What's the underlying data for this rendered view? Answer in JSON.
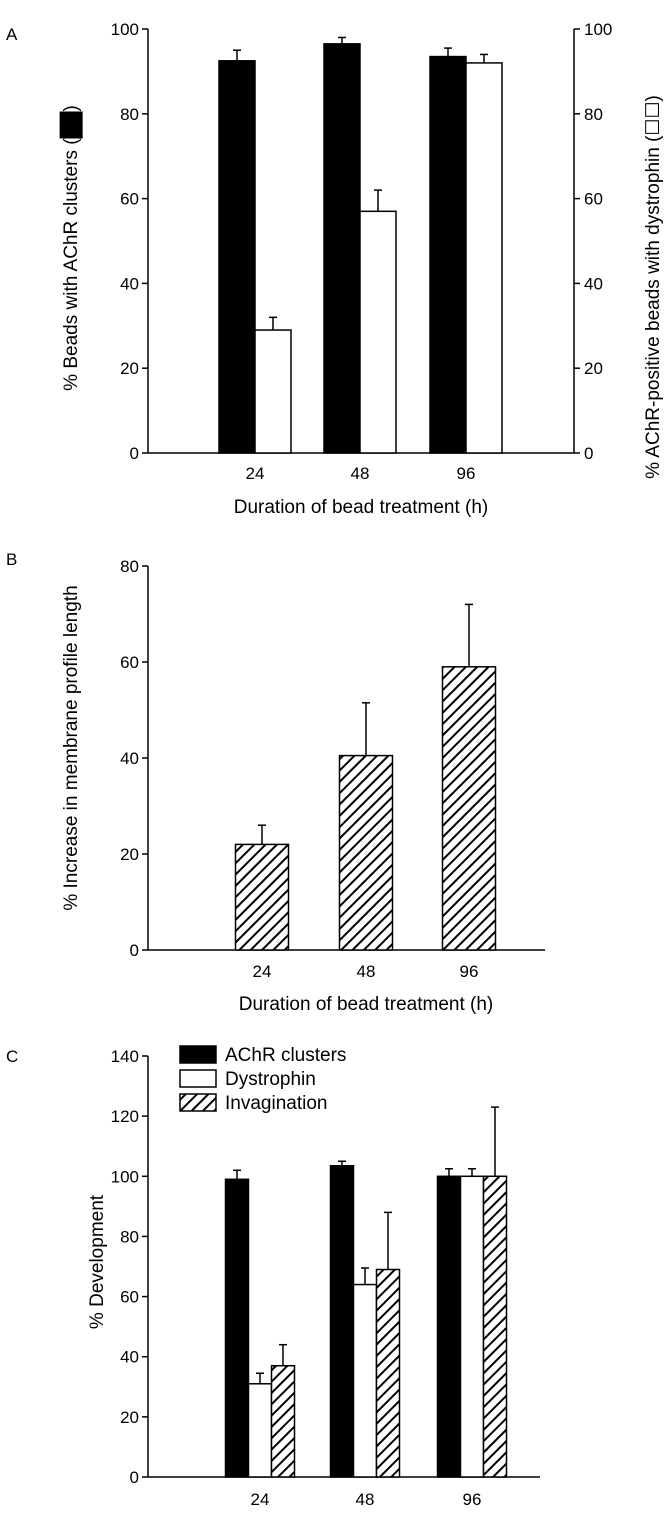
{
  "colors": {
    "filled": "#000000",
    "open": "#ffffff",
    "stroke": "#000000"
  },
  "chart_data": [
    {
      "panel": "A",
      "type": "bar",
      "xlabel": "Duration of bead treatment (h)",
      "ylabel": "% Beads with AChR clusters (",
      "ylabel_right": "% AChR-positive beads with dystrophin (",
      "ylabel_close": ")",
      "ylim": [
        0,
        100
      ],
      "ylim_right": [
        0,
        100
      ],
      "yticks": [
        0,
        20,
        40,
        60,
        80,
        100
      ],
      "yticks_right": [
        0,
        20,
        40,
        60,
        80,
        100
      ],
      "categories": [
        "24",
        "48",
        "96"
      ],
      "series": [
        {
          "name": "AChR clusters",
          "fill": "solid",
          "axis": "left",
          "values": [
            92.5,
            96.5,
            93.5
          ],
          "errors": [
            2.5,
            1.5,
            2.0
          ]
        },
        {
          "name": "Dystrophin",
          "fill": "open",
          "axis": "right",
          "values": [
            29,
            57,
            92
          ],
          "errors": [
            3,
            5,
            2
          ]
        }
      ]
    },
    {
      "panel": "B",
      "type": "bar",
      "xlabel": "Duration of bead treatment (h)",
      "ylabel": "% Increase in membrane profile length",
      "ylim": [
        0,
        80
      ],
      "yticks": [
        0,
        20,
        40,
        60,
        80
      ],
      "categories": [
        "24",
        "48",
        "96"
      ],
      "series": [
        {
          "name": "Invagination",
          "fill": "hatched",
          "values": [
            22,
            40.5,
            59
          ],
          "errors": [
            4,
            11,
            13
          ]
        }
      ]
    },
    {
      "panel": "C",
      "type": "bar",
      "xlabel": "",
      "ylabel": "% Development",
      "ylim": [
        0,
        140
      ],
      "yticks": [
        0,
        20,
        40,
        60,
        80,
        100,
        120,
        140
      ],
      "categories": [
        "24",
        "48",
        "96"
      ],
      "legend": [
        "AChR clusters",
        "Dystrophin",
        "Invagination"
      ],
      "series": [
        {
          "name": "AChR clusters",
          "fill": "solid",
          "values": [
            99,
            103.5,
            100
          ],
          "errors": [
            3,
            1.5,
            2.5
          ]
        },
        {
          "name": "Dystrophin",
          "fill": "open",
          "values": [
            31,
            64,
            100
          ],
          "errors": [
            3.5,
            5.5,
            2.5
          ]
        },
        {
          "name": "Invagination",
          "fill": "hatched",
          "values": [
            37,
            69,
            100
          ],
          "errors": [
            7,
            19,
            23
          ]
        }
      ]
    }
  ]
}
